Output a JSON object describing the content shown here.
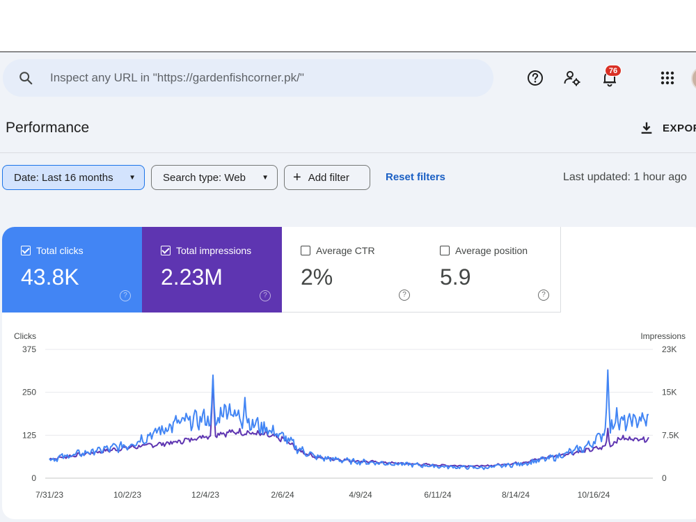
{
  "search": {
    "placeholder": "Inspect any URL in \"https://gardenfishcorner.pk/\""
  },
  "header": {
    "notification_count": "76"
  },
  "page": {
    "title": "Performance",
    "export_label": "EXPOR"
  },
  "filters": {
    "date_chip": "Date: Last 16 months",
    "search_type_chip": "Search type: Web",
    "add_filter": "Add filter",
    "reset": "Reset filters",
    "last_updated": "Last updated: 1 hour ago"
  },
  "metrics": [
    {
      "label": "Total clicks",
      "value": "43.8K",
      "checked": true,
      "color": "#4285f4"
    },
    {
      "label": "Total impressions",
      "value": "2.23M",
      "checked": true,
      "color": "#5e35b1"
    },
    {
      "label": "Average CTR",
      "value": "2%",
      "checked": false
    },
    {
      "label": "Average position",
      "value": "5.9",
      "checked": false
    }
  ],
  "chart_data": {
    "type": "line",
    "left_axis": {
      "label": "Clicks",
      "ticks": [
        "375",
        "250",
        "125",
        "0"
      ],
      "range": [
        0,
        375
      ]
    },
    "right_axis": {
      "label": "Impressions",
      "ticks": [
        "23K",
        "15K",
        "7.5K",
        "0"
      ],
      "range": [
        0,
        23000
      ]
    },
    "x_ticks": [
      "7/31/23",
      "10/2/23",
      "12/4/23",
      "2/6/24",
      "4/9/24",
      "6/11/24",
      "8/14/24",
      "10/16/24"
    ],
    "grid": true,
    "series": [
      {
        "name": "Clicks",
        "color": "#4285f4",
        "axis": "left",
        "anchors": [
          [
            0,
            55
          ],
          [
            30,
            75
          ],
          [
            60,
            95
          ],
          [
            100,
            160
          ],
          [
            125,
            175
          ],
          [
            130,
            160
          ],
          [
            138,
            210
          ],
          [
            150,
            170
          ],
          [
            170,
            145
          ],
          [
            185,
            115
          ],
          [
            195,
            85
          ],
          [
            210,
            60
          ],
          [
            240,
            48
          ],
          [
            280,
            40
          ],
          [
            310,
            33
          ],
          [
            340,
            30
          ],
          [
            370,
            42
          ],
          [
            395,
            60
          ],
          [
            420,
            90
          ],
          [
            440,
            150
          ],
          [
            450,
            160
          ],
          [
            460,
            170
          ]
        ],
        "spikes": [
          [
            128,
            300
          ],
          [
            153,
            235
          ],
          [
            437,
            315
          ],
          [
            444,
            205
          ]
        ]
      },
      {
        "name": "Impressions",
        "color": "#5e35b1",
        "axis": "left",
        "anchors": [
          [
            0,
            55
          ],
          [
            30,
            72
          ],
          [
            60,
            88
          ],
          [
            100,
            105
          ],
          [
            125,
            125
          ],
          [
            130,
            130
          ],
          [
            150,
            135
          ],
          [
            170,
            125
          ],
          [
            185,
            110
          ],
          [
            195,
            80
          ],
          [
            210,
            60
          ],
          [
            240,
            50
          ],
          [
            280,
            42
          ],
          [
            310,
            37
          ],
          [
            340,
            35
          ],
          [
            370,
            45
          ],
          [
            395,
            65
          ],
          [
            420,
            80
          ],
          [
            440,
            95
          ],
          [
            445,
            115
          ],
          [
            460,
            115
          ]
        ],
        "spikes": [
          [
            128,
            290
          ],
          [
            437,
            145
          ]
        ]
      }
    ]
  }
}
